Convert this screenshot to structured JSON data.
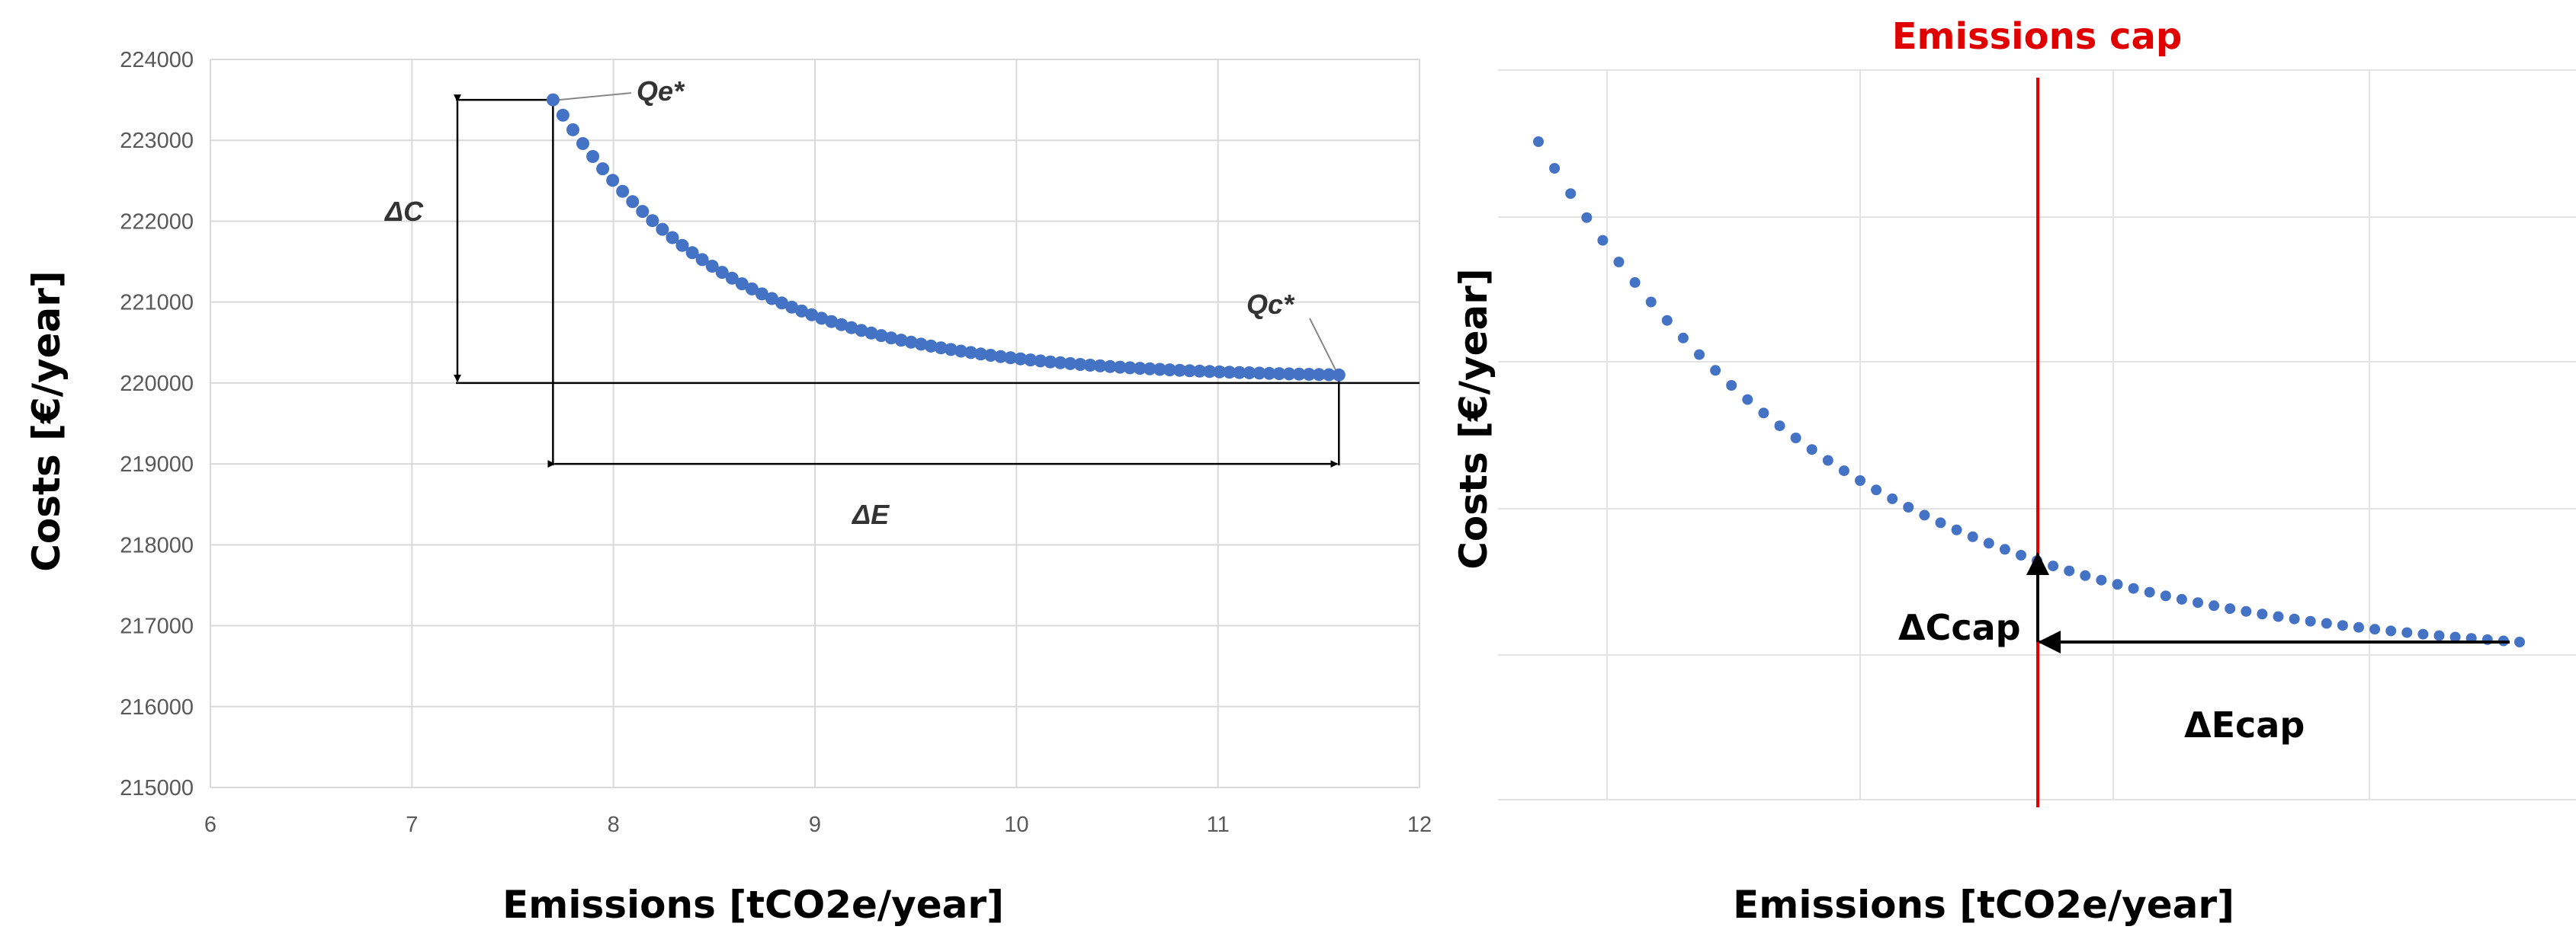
{
  "chart_data": [
    {
      "type": "scatter",
      "xlabel": "Emissions [tCO2e/year]",
      "ylabel": "Costs [€/year]",
      "xlim": [
        6,
        12
      ],
      "ylim": [
        215000,
        224000
      ],
      "xticks": [
        "6",
        "7",
        "8",
        "9",
        "10",
        "11",
        "12"
      ],
      "yticks": [
        "215000",
        "216000",
        "217000",
        "218000",
        "219000",
        "220000",
        "221000",
        "222000",
        "223000",
        "224000"
      ],
      "grid": true,
      "color": "#4472c4",
      "series": [
        {
          "x_start": 7.7,
          "x_end": 11.6,
          "y_start": 223500,
          "y_end": 220100,
          "n_points": 80
        }
      ],
      "annotations": {
        "qe": "Qe*",
        "qc": "Qc*",
        "delta_c": "ΔC",
        "delta_e": "ΔE"
      }
    },
    {
      "type": "scatter",
      "title": "Emissions cap",
      "xlabel": "Emissions [tCO2e/year]",
      "ylabel": "Costs [€/year]",
      "grid": true,
      "color": "#4472c4",
      "cap_color": "#e00000",
      "series": [
        {
          "x_start": 0.05,
          "x_end": 1.0,
          "y_start": 0.85,
          "y_end": 0.13,
          "n_points": 62
        }
      ],
      "emissions_cap_fraction": 0.51,
      "annotations": {
        "delta_c": "ΔCcap",
        "delta_e": "ΔEcap"
      }
    }
  ]
}
